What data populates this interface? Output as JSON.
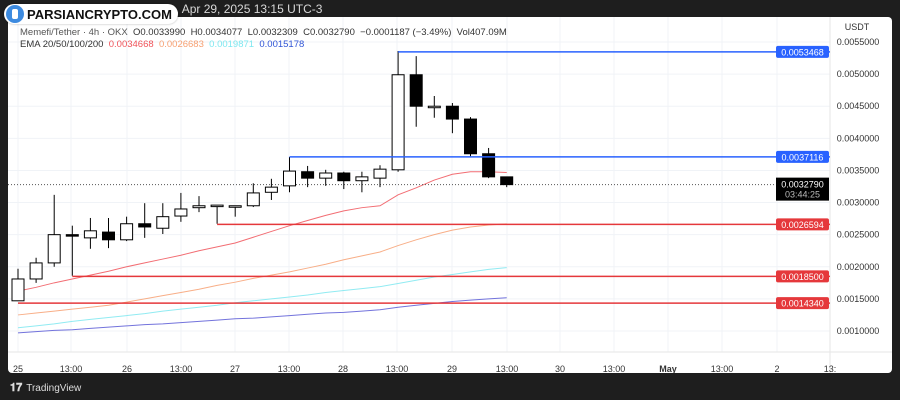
{
  "header": {
    "title": "ew.com, Apr 29, 2025 13:15 UTC-3"
  },
  "logo": {
    "text": "PARSIANCRYPTO.COM"
  },
  "legend": {
    "symbol": "Memefi/Tether · 4h · OKX",
    "open": "O0.0033990",
    "high": "H0.0034077",
    "low": "L0.0032309",
    "close": "C0.0032790",
    "change": "−0.0001187 (−3.49%)",
    "volume": "Vol407.09M",
    "ema_label": "EMA 20/50/100/200",
    "ema_values": [
      "0.0034668",
      "0.0026683",
      "0.0019871",
      "0.0015178"
    ]
  },
  "colors": {
    "ema20": "#f0545a",
    "ema50": "#f7a072",
    "ema100": "#7ee8f0",
    "ema200": "#5b5bd6",
    "resistance": "#2962ff",
    "support": "#e5383b",
    "up": "#ffffff",
    "down": "#000000"
  },
  "price_axis": {
    "unit": "USDT",
    "ticks": [
      "0.0055000",
      "0.0050000",
      "0.0045000",
      "0.0040000",
      "0.0035000",
      "0.0030000",
      "0.0025000",
      "0.0020000",
      "0.0015000",
      "0.0010000"
    ],
    "current_price": "0.0032790",
    "countdown": "03:44:25"
  },
  "time_axis": {
    "ticks": [
      "25",
      "13:00",
      "26",
      "13:00",
      "27",
      "13:00",
      "28",
      "13:00",
      "29",
      "13:00",
      "30",
      "13:00",
      "May",
      "13:00",
      "2",
      "13:"
    ]
  },
  "footer": {
    "brand": "TradingView",
    "logo_icon": "tradingview-logo-icon"
  },
  "chart_data": {
    "type": "candlestick",
    "interval": "4h",
    "unit": "thousandths USDT (x0.001)",
    "ylim": [
      0.0007,
      0.0057
    ],
    "candles": [
      [
        1.47,
        1.97,
        1.47,
        1.81
      ],
      [
        1.81,
        2.14,
        1.75,
        2.06
      ],
      [
        2.06,
        3.12,
        2.0,
        2.5
      ],
      [
        2.5,
        2.64,
        1.86,
        2.48
      ],
      [
        2.45,
        2.76,
        2.28,
        2.56
      ],
      [
        2.54,
        2.76,
        2.29,
        2.42
      ],
      [
        2.42,
        2.78,
        2.4,
        2.67
      ],
      [
        2.67,
        2.99,
        2.45,
        2.62
      ],
      [
        2.6,
        2.99,
        2.51,
        2.78
      ],
      [
        2.79,
        3.15,
        2.7,
        2.9
      ],
      [
        2.92,
        3.1,
        2.85,
        2.95
      ],
      [
        2.96,
        2.96,
        2.67,
        2.96
      ],
      [
        2.95,
        2.95,
        2.78,
        2.95
      ],
      [
        2.95,
        3.3,
        2.93,
        3.15
      ],
      [
        3.16,
        3.37,
        3.04,
        3.24
      ],
      [
        3.26,
        3.71,
        3.16,
        3.49
      ],
      [
        3.48,
        3.57,
        3.24,
        3.38
      ],
      [
        3.38,
        3.51,
        3.26,
        3.46
      ],
      [
        3.46,
        3.48,
        3.21,
        3.34
      ],
      [
        3.34,
        3.48,
        3.16,
        3.4
      ],
      [
        3.38,
        3.58,
        3.24,
        3.52
      ],
      [
        3.51,
        5.36,
        3.48,
        4.99
      ],
      [
        4.99,
        5.28,
        4.18,
        4.5
      ],
      [
        4.5,
        4.66,
        4.32,
        4.5
      ],
      [
        4.5,
        4.55,
        4.08,
        4.3
      ],
      [
        4.3,
        4.33,
        3.72,
        3.76
      ],
      [
        3.76,
        3.85,
        3.38,
        3.4
      ],
      [
        3.4,
        3.4,
        3.24,
        3.279
      ]
    ],
    "ema": {
      "ema20": [
        1.62,
        1.68,
        1.75,
        1.81,
        1.87,
        1.93,
        2.0,
        2.06,
        2.12,
        2.18,
        2.25,
        2.31,
        2.37,
        2.46,
        2.55,
        2.64,
        2.72,
        2.8,
        2.87,
        2.92,
        2.95,
        3.12,
        3.23,
        3.35,
        3.44,
        3.48,
        3.48,
        3.467
      ],
      "ema50": [
        1.25,
        1.28,
        1.31,
        1.34,
        1.37,
        1.4,
        1.45,
        1.5,
        1.55,
        1.6,
        1.65,
        1.71,
        1.76,
        1.82,
        1.87,
        1.92,
        1.98,
        2.04,
        2.11,
        2.17,
        2.23,
        2.33,
        2.42,
        2.5,
        2.57,
        2.62,
        2.65,
        2.668
      ],
      "ema100": [
        1.05,
        1.08,
        1.11,
        1.15,
        1.18,
        1.21,
        1.24,
        1.27,
        1.31,
        1.34,
        1.37,
        1.4,
        1.44,
        1.47,
        1.5,
        1.53,
        1.56,
        1.6,
        1.63,
        1.66,
        1.69,
        1.74,
        1.79,
        1.84,
        1.88,
        1.92,
        1.96,
        1.987
      ],
      "ema200": [
        0.97,
        0.99,
        1.01,
        1.02,
        1.04,
        1.06,
        1.08,
        1.1,
        1.11,
        1.13,
        1.15,
        1.17,
        1.19,
        1.2,
        1.22,
        1.24,
        1.26,
        1.28,
        1.29,
        1.31,
        1.33,
        1.37,
        1.4,
        1.43,
        1.46,
        1.48,
        1.5,
        1.518
      ]
    },
    "levels": [
      {
        "price": "0.0053468",
        "type": "resistance",
        "from_candle": 22
      },
      {
        "price": "0.0037116",
        "type": "resistance",
        "from_candle": 16
      },
      {
        "price": "0.0026594",
        "type": "support",
        "from_candle": 12
      },
      {
        "price": "0.0018500",
        "type": "support",
        "from_candle": 4
      },
      {
        "price": "0.0014340",
        "type": "support",
        "from_candle": 1
      }
    ]
  }
}
